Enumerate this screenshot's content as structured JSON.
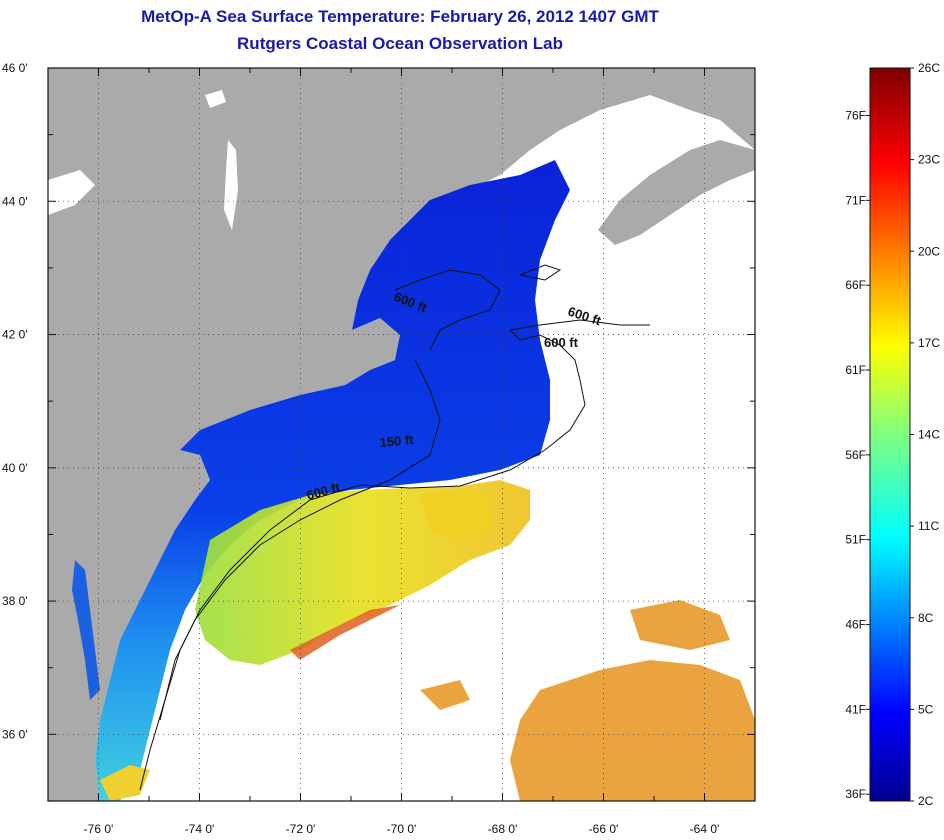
{
  "title": {
    "line1": "MetOp-A Sea Surface Temperature:  February 26, 2012 1407 GMT",
    "line2": "Rutgers Coastal Ocean Observation Lab"
  },
  "axes": {
    "latitude_ticks": [
      "46 0'",
      "44 0'",
      "42 0'",
      "40 0'",
      "38 0'",
      "36 0'"
    ],
    "longitude_ticks": [
      "-76 0'",
      "-74 0'",
      "-72 0'",
      "-70 0'",
      "-68 0'",
      "-66 0'",
      "-64 0'"
    ],
    "lat_range": [
      35,
      46
    ],
    "lon_range": [
      -77,
      -63
    ]
  },
  "contours": {
    "labels": [
      "600 ft",
      "600 ft",
      "600 ft",
      "150 ft",
      "600 ft"
    ]
  },
  "colorbar": {
    "celsius_labels": [
      "26C",
      "23C",
      "20C",
      "17C",
      "14C",
      "11C",
      "8C",
      "5C",
      "2C"
    ],
    "fahrenheit_labels": [
      "76F",
      "71F",
      "66F",
      "61F",
      "56F",
      "51F",
      "46F",
      "41F",
      "36F"
    ],
    "range_c": [
      2,
      26
    ]
  },
  "colors": {
    "land": "#aaaaaa",
    "title": "#1a1aa8",
    "cold": "#0a1fd6",
    "warm": "#e08a1e"
  }
}
